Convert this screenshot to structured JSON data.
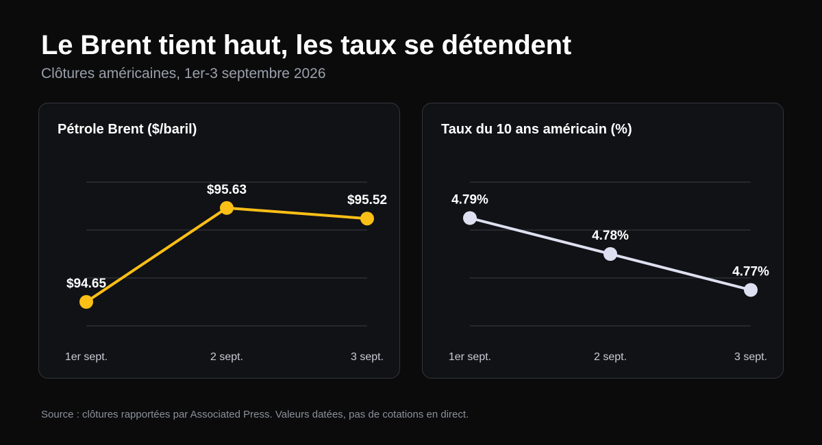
{
  "header": {
    "title": "Le Brent tient haut, les taux se détendent",
    "subtitle": "Clôtures américaines, 1er-3 septembre 2026"
  },
  "footer": {
    "source": "Source : clôtures rapportées par Associated Press. Valeurs datées, pas de cotations en direct."
  },
  "chart_data": [
    {
      "type": "line",
      "title": "Pétrole Brent ($/baril)",
      "categories": [
        "1er sept.",
        "2 sept.",
        "3 sept."
      ],
      "values": [
        94.65,
        95.63,
        95.52
      ],
      "labels": [
        "$94.65",
        "$95.63",
        "$95.52"
      ],
      "ylim": [
        94.4,
        95.9
      ],
      "grid": true,
      "color": "#fbbf16"
    },
    {
      "type": "line",
      "title": "Taux du 10 ans américain (%)",
      "categories": [
        "1er sept.",
        "2 sept.",
        "3 sept."
      ],
      "values": [
        4.79,
        4.78,
        4.77
      ],
      "labels": [
        "4.79%",
        "4.78%",
        "4.77%"
      ],
      "ylim": [
        4.76,
        4.8
      ],
      "grid": true,
      "color": "#dde0f0"
    }
  ]
}
